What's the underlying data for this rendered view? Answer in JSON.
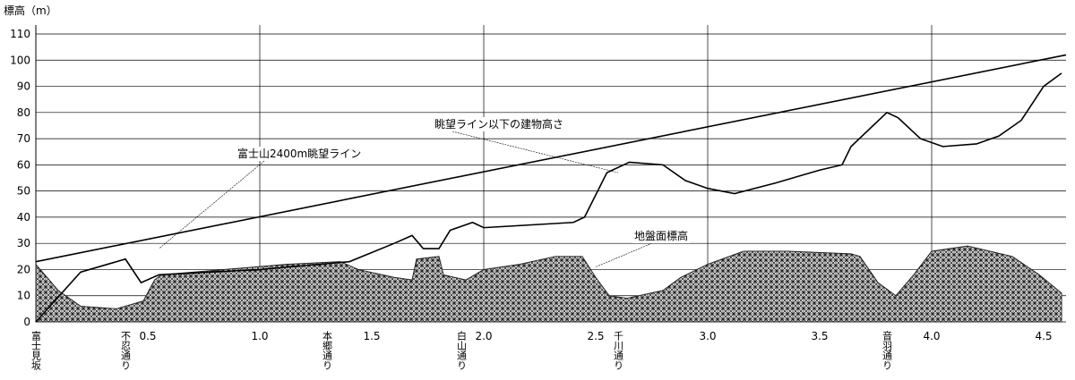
{
  "chart_data": {
    "type": "line",
    "y_label": "標高（m）",
    "xlim": [
      0,
      4.6
    ],
    "ylim": [
      0,
      110
    ],
    "yticks": [
      0,
      10,
      20,
      30,
      40,
      50,
      60,
      70,
      80,
      90,
      100,
      110
    ],
    "xticks": [
      {
        "value": 0.5,
        "label": "0.5"
      },
      {
        "value": 1.0,
        "label": "1.0"
      },
      {
        "value": 1.5,
        "label": "1.5"
      },
      {
        "value": 2.0,
        "label": "2.0"
      },
      {
        "value": 2.5,
        "label": "2.5"
      },
      {
        "value": 3.0,
        "label": "3.0"
      },
      {
        "value": 3.5,
        "label": "3.5"
      },
      {
        "value": 4.0,
        "label": "4.0"
      },
      {
        "value": 4.5,
        "label": "4.5"
      }
    ],
    "grid": true,
    "series": [
      {
        "name": "地盤面標高",
        "kind": "area",
        "color": "#222222",
        "x": [
          0,
          0.1,
          0.2,
          0.36,
          0.48,
          0.53,
          0.56,
          0.84,
          1.12,
          1.36,
          1.44,
          1.6,
          1.68,
          1.7,
          1.8,
          1.82,
          1.92,
          2.0,
          2.16,
          2.32,
          2.44,
          2.5,
          2.56,
          2.64,
          2.8,
          2.88,
          3.0,
          3.16,
          3.36,
          3.64,
          3.68,
          3.76,
          3.84,
          3.92,
          4.0,
          4.16,
          4.36,
          4.48,
          4.58
        ],
        "values": [
          22,
          12,
          6,
          5,
          8,
          16,
          18,
          20,
          22,
          23,
          20,
          17,
          16,
          24,
          25,
          18,
          16,
          20,
          22,
          25,
          25,
          17,
          10,
          9,
          12,
          17,
          22,
          27,
          27,
          26,
          25,
          15,
          10,
          18,
          27,
          29,
          25,
          18,
          11
        ]
      },
      {
        "name": "富士山2400m眺望ライン",
        "kind": "line",
        "color": "#000000",
        "x": [
          0,
          4.6
        ],
        "values": [
          23,
          102
        ]
      },
      {
        "name": "眺望ライン以下の建物高さ",
        "kind": "line",
        "color": "#000000",
        "x": [
          0,
          0.2,
          0.4,
          0.47,
          0.55,
          1.0,
          1.4,
          1.6,
          1.68,
          1.73,
          1.8,
          1.85,
          1.95,
          2.0,
          2.4,
          2.45,
          2.55,
          2.65,
          2.8,
          2.9,
          3.0,
          3.12,
          3.3,
          3.5,
          3.6,
          3.64,
          3.8,
          3.85,
          3.95,
          4.05,
          4.2,
          4.3,
          4.4,
          4.5,
          4.58
        ],
        "values": [
          0,
          19,
          24,
          15,
          18,
          20,
          23,
          30,
          33,
          28,
          28,
          35,
          38,
          36,
          38,
          40,
          57,
          61,
          60,
          54,
          51,
          49,
          53,
          58,
          60,
          67,
          80,
          78,
          70,
          67,
          68,
          71,
          77,
          90,
          95
        ]
      }
    ],
    "streets": [
      {
        "name": "富士見坂",
        "x": 0
      },
      {
        "name": "不忍通り",
        "x": 0.4
      },
      {
        "name": "本郷通り",
        "x": 1.3
      },
      {
        "name": "白山通り",
        "x": 1.9
      },
      {
        "name": "千川通り",
        "x": 2.6
      },
      {
        "name": "音羽通り",
        "x": 3.8
      }
    ]
  }
}
